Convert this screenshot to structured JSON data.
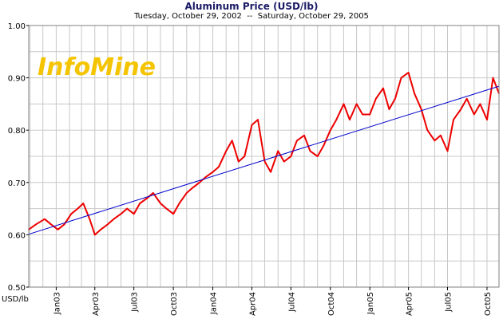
{
  "chart_data": {
    "type": "line",
    "title": "Aluminum Price (USD/lb)",
    "subtitle": "Tuesday, October 29, 2002  --  Saturday, October 29, 2005",
    "ylabel": "USD/lb",
    "xlabel": "",
    "logo_text": "InfoMine",
    "ylim": [
      0.5,
      1.0
    ],
    "yticks": [
      "0.50",
      "0.60",
      "0.70",
      "0.80",
      "0.90",
      "1.00"
    ],
    "xlim": [
      "2002-10-29",
      "2005-10-29"
    ],
    "xticks": [
      {
        "label": "Jan03",
        "date": "2003-01-01"
      },
      {
        "label": "Apr03",
        "date": "2003-04-01"
      },
      {
        "label": "Jul03",
        "date": "2003-07-01"
      },
      {
        "label": "Oct03",
        "date": "2003-10-01"
      },
      {
        "label": "Jan04",
        "date": "2004-01-01"
      },
      {
        "label": "Apr04",
        "date": "2004-04-01"
      },
      {
        "label": "Jul04",
        "date": "2004-07-01"
      },
      {
        "label": "Oct04",
        "date": "2004-10-01"
      },
      {
        "label": "Jan05",
        "date": "2005-01-01"
      },
      {
        "label": "Apr05",
        "date": "2005-04-01"
      },
      {
        "label": "Jul05",
        "date": "2005-07-01"
      },
      {
        "label": "Oct05",
        "date": "2005-10-01"
      }
    ],
    "grid": true,
    "series": [
      {
        "color": "#ee0000",
        "x": [
          "2002-10-29",
          "2002-11-15",
          "2002-12-05",
          "2002-12-20",
          "2003-01-05",
          "2003-01-20",
          "2003-02-05",
          "2003-02-20",
          "2003-03-05",
          "2003-03-20",
          "2003-04-01",
          "2003-04-15",
          "2003-05-01",
          "2003-05-15",
          "2003-06-01",
          "2003-06-15",
          "2003-07-01",
          "2003-07-15",
          "2003-08-01",
          "2003-08-15",
          "2003-09-01",
          "2003-09-15",
          "2003-10-01",
          "2003-10-15",
          "2003-11-01",
          "2003-11-15",
          "2003-12-01",
          "2003-12-15",
          "2004-01-01",
          "2004-01-15",
          "2004-02-01",
          "2004-02-15",
          "2004-03-01",
          "2004-03-15",
          "2004-04-01",
          "2004-04-15",
          "2004-05-01",
          "2004-05-15",
          "2004-06-01",
          "2004-06-15",
          "2004-07-01",
          "2004-07-15",
          "2004-08-01",
          "2004-08-15",
          "2004-09-01",
          "2004-09-15",
          "2004-10-01",
          "2004-10-15",
          "2004-11-01",
          "2004-11-15",
          "2004-12-01",
          "2004-12-15",
          "2005-01-01",
          "2005-01-15",
          "2005-02-01",
          "2005-02-15",
          "2005-03-01",
          "2005-03-15",
          "2005-04-01",
          "2005-04-15",
          "2005-05-01",
          "2005-05-15",
          "2005-06-01",
          "2005-06-15",
          "2005-07-01",
          "2005-07-15",
          "2005-08-01",
          "2005-08-15",
          "2005-09-01",
          "2005-09-15",
          "2005-10-01",
          "2005-10-15",
          "2005-10-29"
        ],
        "y": [
          0.61,
          0.62,
          0.63,
          0.62,
          0.61,
          0.62,
          0.64,
          0.65,
          0.66,
          0.63,
          0.6,
          0.61,
          0.62,
          0.63,
          0.64,
          0.65,
          0.64,
          0.66,
          0.67,
          0.68,
          0.66,
          0.65,
          0.64,
          0.66,
          0.68,
          0.69,
          0.7,
          0.71,
          0.72,
          0.73,
          0.76,
          0.78,
          0.74,
          0.75,
          0.81,
          0.82,
          0.74,
          0.72,
          0.76,
          0.74,
          0.75,
          0.78,
          0.79,
          0.76,
          0.75,
          0.77,
          0.8,
          0.82,
          0.85,
          0.82,
          0.85,
          0.83,
          0.83,
          0.86,
          0.88,
          0.84,
          0.86,
          0.9,
          0.91,
          0.87,
          0.84,
          0.8,
          0.78,
          0.79,
          0.76,
          0.82,
          0.84,
          0.86,
          0.83,
          0.85,
          0.82,
          0.9,
          0.87
        ]
      },
      {
        "color": "#0000cc",
        "x": [
          "2002-10-29",
          "2005-10-29"
        ],
        "y": [
          0.601,
          0.884
        ]
      }
    ]
  }
}
